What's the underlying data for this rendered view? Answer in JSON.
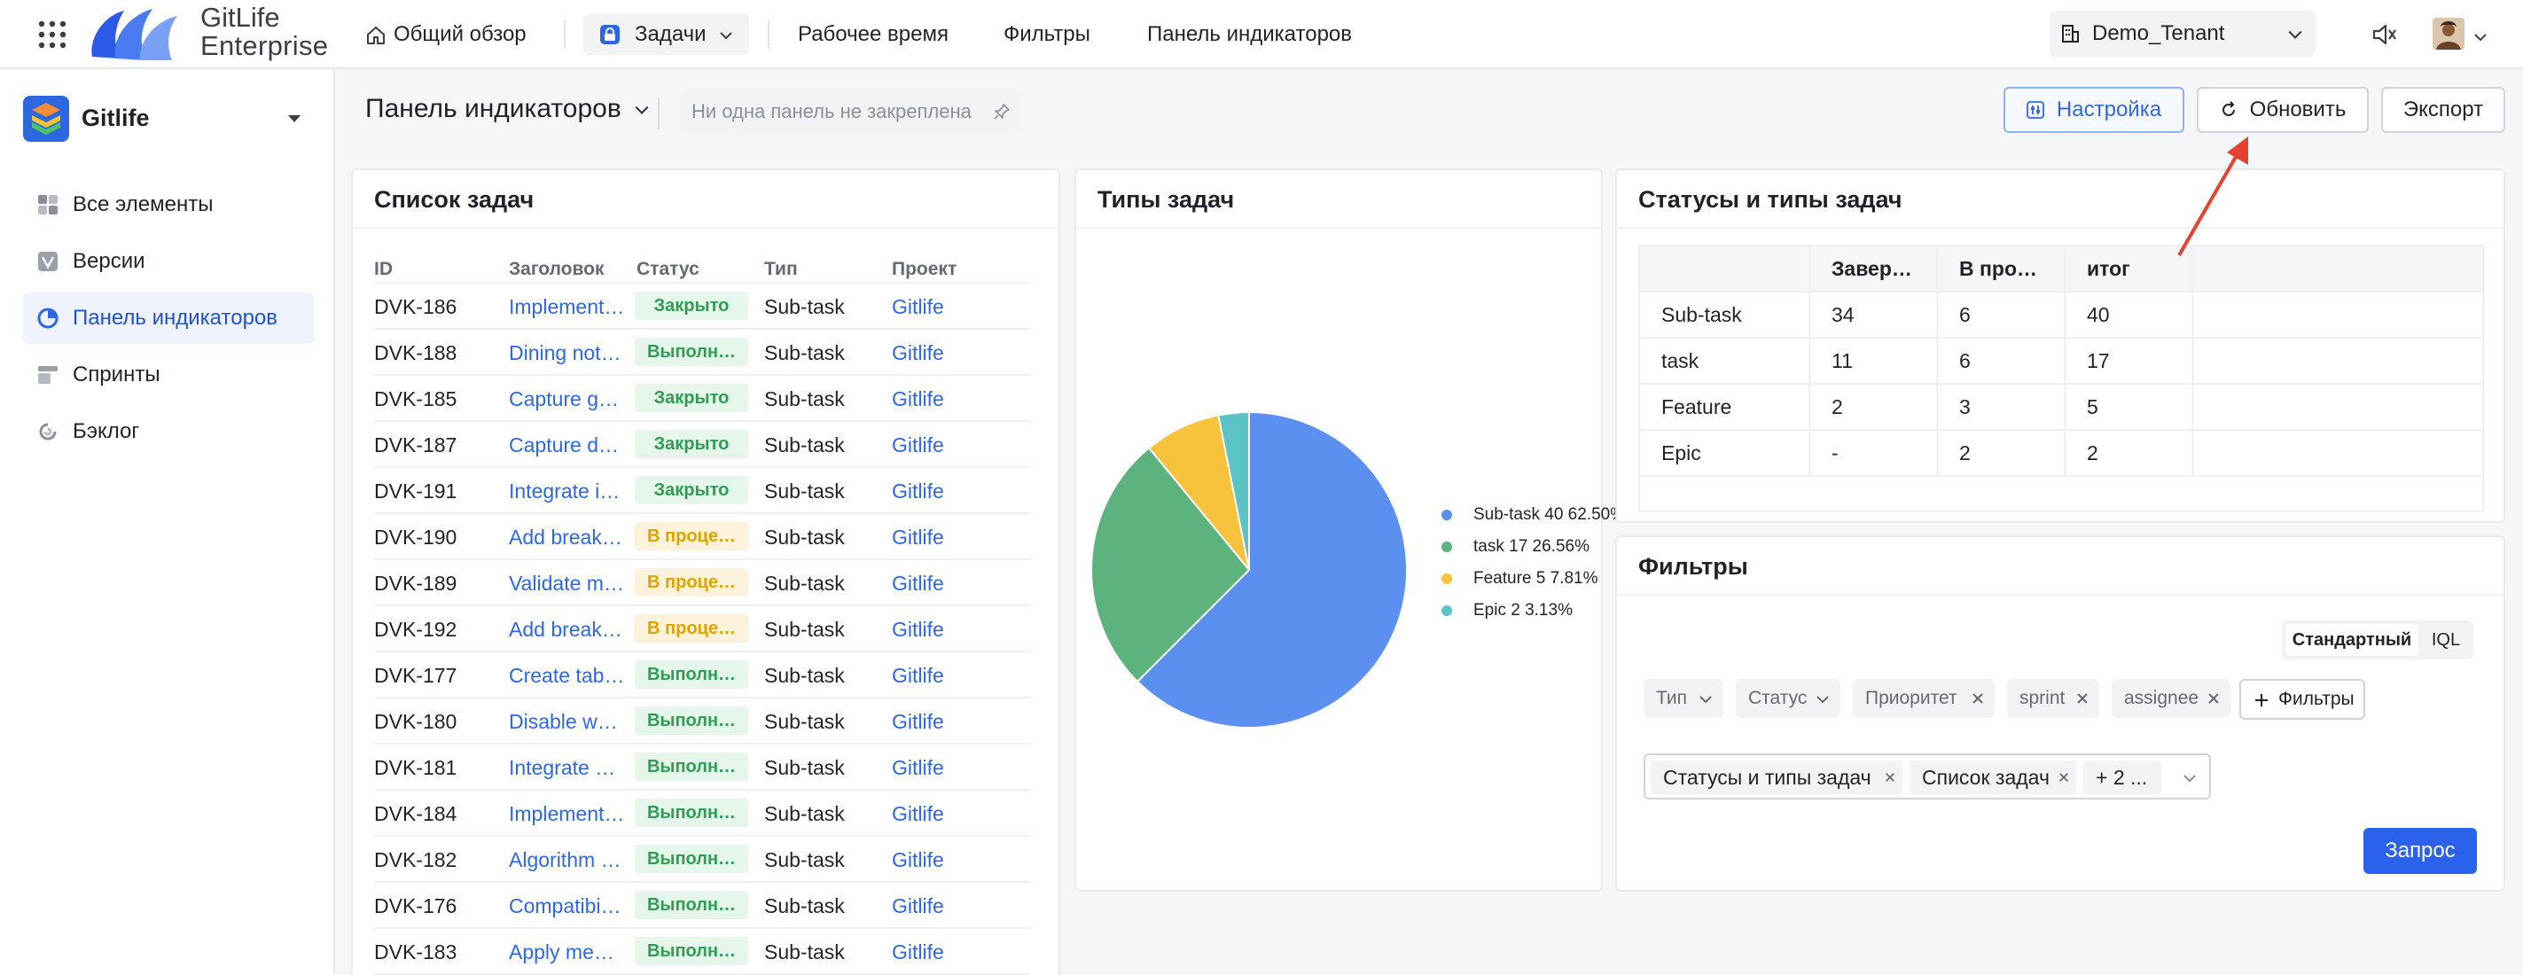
{
  "topbar": {
    "brand_line1": "GitLife",
    "brand_line2": "Enterprise",
    "nav": [
      "Общий обзор",
      "Задачи",
      "Рабочее время",
      "Фильтры",
      "Панель индикаторов"
    ],
    "tenant": "Demo_Tenant"
  },
  "sidebar": {
    "project_name": "Gitlife",
    "items": [
      "Все элементы",
      "Версии",
      "Панель индикаторов",
      "Спринты",
      "Бэклог"
    ],
    "active_index": 2
  },
  "header": {
    "title": "Панель индикаторов",
    "pin_placeholder": "Ни одна панель не закреплена",
    "settings_label": "Настройка",
    "refresh_label": "Обновить",
    "export_label": "Экспорт"
  },
  "task_list": {
    "title": "Список задач",
    "columns": [
      "ID",
      "Заголовок",
      "Статус",
      "Тип",
      "Проект"
    ],
    "rows": [
      {
        "id": "DVK-186",
        "title": "Implement…",
        "status": "Закрыто",
        "status_kind": "done",
        "type": "Sub-task",
        "project": "Gitlife"
      },
      {
        "id": "DVK-188",
        "title": "Dining not…",
        "status": "Выполн…",
        "status_kind": "done",
        "type": "Sub-task",
        "project": "Gitlife"
      },
      {
        "id": "DVK-185",
        "title": "Capture g…",
        "status": "Закрыто",
        "status_kind": "done",
        "type": "Sub-task",
        "project": "Gitlife"
      },
      {
        "id": "DVK-187",
        "title": "Capture d…",
        "status": "Закрыто",
        "status_kind": "done",
        "type": "Sub-task",
        "project": "Gitlife"
      },
      {
        "id": "DVK-191",
        "title": "Integrate i…",
        "status": "Закрыто",
        "status_kind": "done",
        "type": "Sub-task",
        "project": "Gitlife"
      },
      {
        "id": "DVK-190",
        "title": "Add break…",
        "status": "В проце…",
        "status_kind": "prog",
        "type": "Sub-task",
        "project": "Gitlife"
      },
      {
        "id": "DVK-189",
        "title": "Validate m…",
        "status": "В проце…",
        "status_kind": "prog",
        "type": "Sub-task",
        "project": "Gitlife"
      },
      {
        "id": "DVK-192",
        "title": "Add break…",
        "status": "В проце…",
        "status_kind": "prog",
        "type": "Sub-task",
        "project": "Gitlife"
      },
      {
        "id": "DVK-177",
        "title": "Create tab…",
        "status": "Выполн…",
        "status_kind": "done",
        "type": "Sub-task",
        "project": "Gitlife"
      },
      {
        "id": "DVK-180",
        "title": "Disable w…",
        "status": "Выполн…",
        "status_kind": "done",
        "type": "Sub-task",
        "project": "Gitlife"
      },
      {
        "id": "DVK-181",
        "title": "Integrate …",
        "status": "Выполн…",
        "status_kind": "done",
        "type": "Sub-task",
        "project": "Gitlife"
      },
      {
        "id": "DVK-184",
        "title": "Implement…",
        "status": "Выполн…",
        "status_kind": "done",
        "type": "Sub-task",
        "project": "Gitlife"
      },
      {
        "id": "DVK-182",
        "title": "Algorithm …",
        "status": "Выполн…",
        "status_kind": "done",
        "type": "Sub-task",
        "project": "Gitlife"
      },
      {
        "id": "DVK-176",
        "title": "Compatibi…",
        "status": "Выполн…",
        "status_kind": "done",
        "type": "Sub-task",
        "project": "Gitlife"
      },
      {
        "id": "DVK-183",
        "title": "Apply me…",
        "status": "Выполн…",
        "status_kind": "done",
        "type": "Sub-task",
        "project": "Gitlife"
      }
    ]
  },
  "task_types": {
    "title": "Типы задач",
    "legend": [
      "Sub-task 40 62.50%",
      "task 17 26.56%",
      "Feature 5 7.81%",
      "Epic 2 3.13%"
    ]
  },
  "chart_data": {
    "type": "pie",
    "title": "Типы задач",
    "categories": [
      "Sub-task",
      "task",
      "Feature",
      "Epic"
    ],
    "values": [
      40,
      17,
      5,
      2
    ],
    "percentages": [
      62.5,
      26.56,
      7.81,
      3.13
    ],
    "colors": [
      "#5b8ff0",
      "#5cb37e",
      "#f7c23c",
      "#5cc4c4"
    ],
    "legend_position": "right"
  },
  "status_types": {
    "title": "Статусы и типы задач",
    "columns": [
      "",
      "Завер…",
      "В про…",
      "итог"
    ],
    "rows": [
      [
        "Sub-task",
        "34",
        "6",
        "40"
      ],
      [
        "task",
        "11",
        "6",
        "17"
      ],
      [
        "Feature",
        "2",
        "3",
        "5"
      ],
      [
        "Epic",
        "-",
        "2",
        "2"
      ]
    ]
  },
  "filters": {
    "title": "Фильтры",
    "mode_standard": "Стандартный",
    "mode_iql": "IQL",
    "chips": [
      "Тип",
      "Статус",
      "Приоритет",
      "sprint",
      "assignee"
    ],
    "add_filter": "Фильтры",
    "selected": [
      "Статусы и типы задач",
      "Список задач",
      "+ 2 ..."
    ],
    "query_label": "Запрос"
  },
  "colors": {
    "accent": "#2a62ec",
    "link": "#2e68e0",
    "annotation_arrow": "#e5432f"
  }
}
